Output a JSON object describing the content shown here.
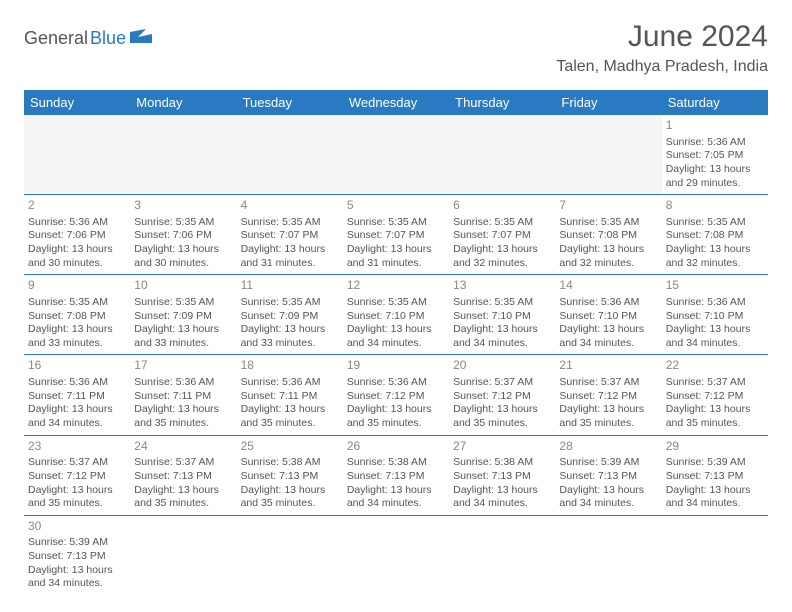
{
  "logo": {
    "part1": "General",
    "part2": "Blue"
  },
  "title": "June 2024",
  "location": "Talen, Madhya Pradesh, India",
  "colors": {
    "header_bg": "#2a7ac2",
    "header_text": "#ffffff",
    "row_border": "#2a7ac2",
    "text": "#555555",
    "daynum": "#888888",
    "empty_bg": "#f5f5f5",
    "page_bg": "#ffffff"
  },
  "fonts": {
    "title_size": 30,
    "location_size": 16,
    "weekday_size": 13,
    "daynum_size": 12,
    "cell_size": 10.5
  },
  "weekdays": [
    "Sunday",
    "Monday",
    "Tuesday",
    "Wednesday",
    "Thursday",
    "Friday",
    "Saturday"
  ],
  "weeks": [
    [
      null,
      null,
      null,
      null,
      null,
      null,
      {
        "n": "1",
        "sunrise": "5:36 AM",
        "sunset": "7:05 PM",
        "daylight": "13 hours and 29 minutes."
      }
    ],
    [
      {
        "n": "2",
        "sunrise": "5:36 AM",
        "sunset": "7:06 PM",
        "daylight": "13 hours and 30 minutes."
      },
      {
        "n": "3",
        "sunrise": "5:35 AM",
        "sunset": "7:06 PM",
        "daylight": "13 hours and 30 minutes."
      },
      {
        "n": "4",
        "sunrise": "5:35 AM",
        "sunset": "7:07 PM",
        "daylight": "13 hours and 31 minutes."
      },
      {
        "n": "5",
        "sunrise": "5:35 AM",
        "sunset": "7:07 PM",
        "daylight": "13 hours and 31 minutes."
      },
      {
        "n": "6",
        "sunrise": "5:35 AM",
        "sunset": "7:07 PM",
        "daylight": "13 hours and 32 minutes."
      },
      {
        "n": "7",
        "sunrise": "5:35 AM",
        "sunset": "7:08 PM",
        "daylight": "13 hours and 32 minutes."
      },
      {
        "n": "8",
        "sunrise": "5:35 AM",
        "sunset": "7:08 PM",
        "daylight": "13 hours and 32 minutes."
      }
    ],
    [
      {
        "n": "9",
        "sunrise": "5:35 AM",
        "sunset": "7:08 PM",
        "daylight": "13 hours and 33 minutes."
      },
      {
        "n": "10",
        "sunrise": "5:35 AM",
        "sunset": "7:09 PM",
        "daylight": "13 hours and 33 minutes."
      },
      {
        "n": "11",
        "sunrise": "5:35 AM",
        "sunset": "7:09 PM",
        "daylight": "13 hours and 33 minutes."
      },
      {
        "n": "12",
        "sunrise": "5:35 AM",
        "sunset": "7:10 PM",
        "daylight": "13 hours and 34 minutes."
      },
      {
        "n": "13",
        "sunrise": "5:35 AM",
        "sunset": "7:10 PM",
        "daylight": "13 hours and 34 minutes."
      },
      {
        "n": "14",
        "sunrise": "5:36 AM",
        "sunset": "7:10 PM",
        "daylight": "13 hours and 34 minutes."
      },
      {
        "n": "15",
        "sunrise": "5:36 AM",
        "sunset": "7:10 PM",
        "daylight": "13 hours and 34 minutes."
      }
    ],
    [
      {
        "n": "16",
        "sunrise": "5:36 AM",
        "sunset": "7:11 PM",
        "daylight": "13 hours and 34 minutes."
      },
      {
        "n": "17",
        "sunrise": "5:36 AM",
        "sunset": "7:11 PM",
        "daylight": "13 hours and 35 minutes."
      },
      {
        "n": "18",
        "sunrise": "5:36 AM",
        "sunset": "7:11 PM",
        "daylight": "13 hours and 35 minutes."
      },
      {
        "n": "19",
        "sunrise": "5:36 AM",
        "sunset": "7:12 PM",
        "daylight": "13 hours and 35 minutes."
      },
      {
        "n": "20",
        "sunrise": "5:37 AM",
        "sunset": "7:12 PM",
        "daylight": "13 hours and 35 minutes."
      },
      {
        "n": "21",
        "sunrise": "5:37 AM",
        "sunset": "7:12 PM",
        "daylight": "13 hours and 35 minutes."
      },
      {
        "n": "22",
        "sunrise": "5:37 AM",
        "sunset": "7:12 PM",
        "daylight": "13 hours and 35 minutes."
      }
    ],
    [
      {
        "n": "23",
        "sunrise": "5:37 AM",
        "sunset": "7:12 PM",
        "daylight": "13 hours and 35 minutes."
      },
      {
        "n": "24",
        "sunrise": "5:37 AM",
        "sunset": "7:13 PM",
        "daylight": "13 hours and 35 minutes."
      },
      {
        "n": "25",
        "sunrise": "5:38 AM",
        "sunset": "7:13 PM",
        "daylight": "13 hours and 35 minutes."
      },
      {
        "n": "26",
        "sunrise": "5:38 AM",
        "sunset": "7:13 PM",
        "daylight": "13 hours and 34 minutes."
      },
      {
        "n": "27",
        "sunrise": "5:38 AM",
        "sunset": "7:13 PM",
        "daylight": "13 hours and 34 minutes."
      },
      {
        "n": "28",
        "sunrise": "5:39 AM",
        "sunset": "7:13 PM",
        "daylight": "13 hours and 34 minutes."
      },
      {
        "n": "29",
        "sunrise": "5:39 AM",
        "sunset": "7:13 PM",
        "daylight": "13 hours and 34 minutes."
      }
    ],
    [
      {
        "n": "30",
        "sunrise": "5:39 AM",
        "sunset": "7:13 PM",
        "daylight": "13 hours and 34 minutes."
      },
      null,
      null,
      null,
      null,
      null,
      null
    ]
  ],
  "labels": {
    "sunrise_prefix": "Sunrise: ",
    "sunset_prefix": "Sunset: ",
    "daylight_prefix": "Daylight: "
  }
}
